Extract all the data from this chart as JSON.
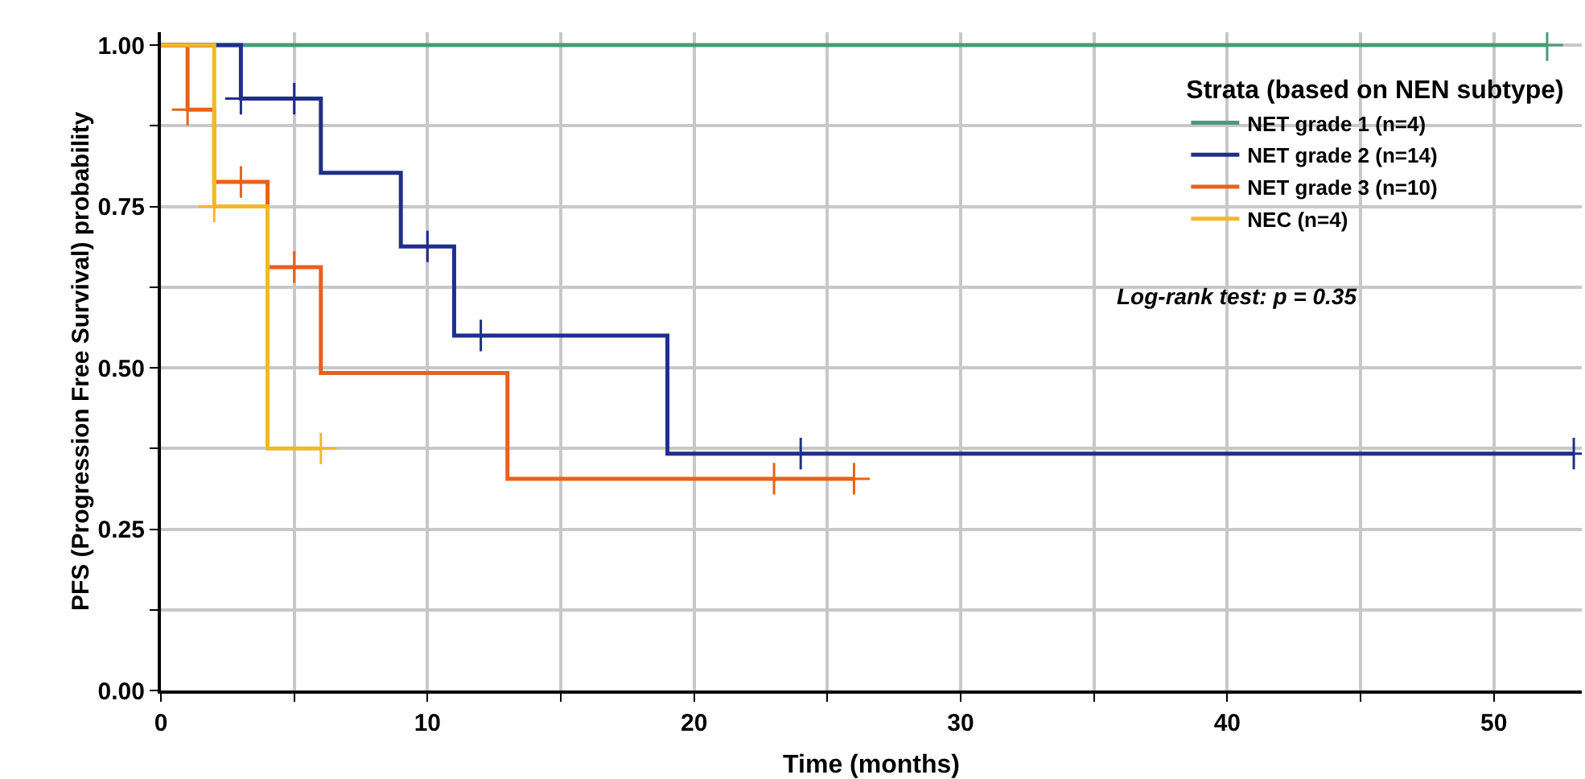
{
  "chart_data": {
    "type": "step",
    "xlabel": "Time (months)",
    "ylabel": "PFS (Progression Free Survival) probability",
    "legend_title": "Strata (based on NEN subtype)",
    "legend": "top right",
    "grid": true,
    "xlim": [
      0,
      53.3
    ],
    "ylim": [
      0,
      1.02
    ],
    "xticks": [
      0,
      {
        "value": 5,
        "label": null
      },
      10,
      {
        "value": 15,
        "label": null
      },
      20,
      {
        "value": 25,
        "label": null
      },
      30,
      {
        "value": 35,
        "label": null
      },
      40,
      {
        "value": 45,
        "label": null
      },
      50
    ],
    "yticks": [
      {
        "value": 0,
        "label": "0.00"
      },
      {
        "value": 0.125,
        "label": null
      },
      0.25,
      {
        "value": 0.375,
        "label": null
      },
      {
        "value": 0.5,
        "label": "0.50"
      },
      {
        "value": 0.625,
        "label": null
      },
      0.75,
      {
        "value": 0.875,
        "label": null
      },
      {
        "value": 1,
        "label": "1.00"
      }
    ],
    "annotations": [
      "Log-rank test: p = 0.35"
    ],
    "series": [
      {
        "name": "NET grade 1 (n=4)",
        "color": "#4a9a78",
        "x": [
          0,
          52
        ],
        "values": [
          1,
          1
        ]
      },
      {
        "name": "NET grade 2 (n=14)",
        "color": "#1f2f8a",
        "x": [
          0,
          3,
          6,
          9,
          11,
          19,
          53
        ],
        "values": [
          1,
          0.917,
          0.802,
          0.688,
          0.55,
          0.367,
          0.367
        ]
      },
      {
        "name": "NET grade 3 (n=10)",
        "color": "#e8621a",
        "x": [
          0,
          1,
          2,
          4,
          6,
          13,
          26
        ],
        "values": [
          1,
          0.9,
          0.788,
          0.656,
          0.492,
          0.328,
          0.328
        ]
      },
      {
        "name": "NEC (n=4)",
        "color": "#f2b82a",
        "x": [
          0,
          2,
          4,
          6
        ],
        "values": [
          1,
          0.75,
          0.375,
          0.375
        ]
      },
      {
        "type": "scatter",
        "color": "#4a9a78",
        "marker": "cross",
        "x": [
          52
        ],
        "values": [
          1
        ]
      },
      {
        "type": "scatter",
        "color": "#1f2f8a",
        "marker": "cross",
        "x": [
          3,
          5,
          10,
          12,
          24,
          53
        ],
        "values": [
          0.917,
          0.917,
          0.688,
          0.55,
          0.367,
          0.367
        ]
      },
      {
        "type": "scatter",
        "color": "#e8621a",
        "marker": "cross",
        "x": [
          1,
          3,
          5,
          23,
          26
        ],
        "values": [
          0.9,
          0.788,
          0.656,
          0.328,
          0.328
        ]
      },
      {
        "type": "scatter",
        "color": "#f2b82a",
        "marker": "cross",
        "x": [
          2,
          6
        ],
        "values": [
          0.75,
          0.375
        ]
      }
    ]
  }
}
